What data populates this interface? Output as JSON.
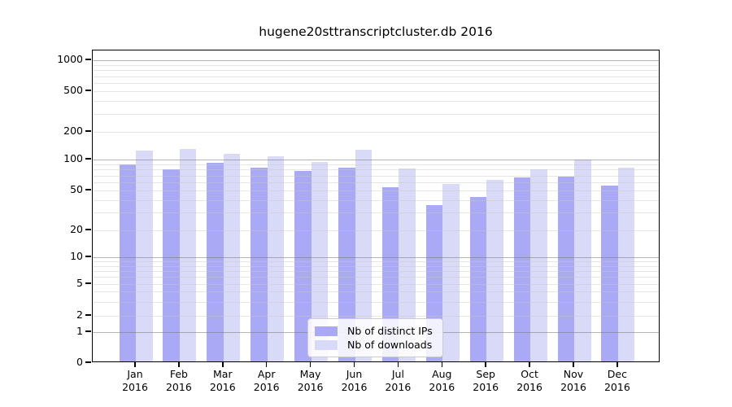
{
  "chart_data": {
    "type": "bar",
    "title": "hugene20sttranscriptcluster.db 2016",
    "categories": [
      "Jan",
      "Feb",
      "Mar",
      "Apr",
      "May",
      "Jun",
      "Jul",
      "Aug",
      "Sep",
      "Oct",
      "Nov",
      "Dec"
    ],
    "category_year": "2016",
    "series": [
      {
        "name": "Nb of distinct IPs",
        "color": "#a9a9f5",
        "values": [
          90,
          81,
          93,
          84,
          78,
          83,
          54,
          36,
          43,
          67,
          68,
          56
        ]
      },
      {
        "name": "Nb of downloads",
        "color": "#d9d9f8",
        "values": [
          126,
          130,
          115,
          109,
          95,
          127,
          82,
          58,
          63,
          80,
          101,
          84
        ]
      }
    ],
    "y_ticks": [
      0,
      1,
      2,
      5,
      10,
      20,
      50,
      100,
      200,
      500,
      1000
    ],
    "ylim": [
      0,
      1200
    ],
    "yscale": "log-like with linear segment from 0 to 1",
    "grid": "horizontal, minor lines at 2-9 per decade, darker lines at decades",
    "legend_position": "bottom-center-inside",
    "xlabel": "",
    "ylabel": ""
  }
}
